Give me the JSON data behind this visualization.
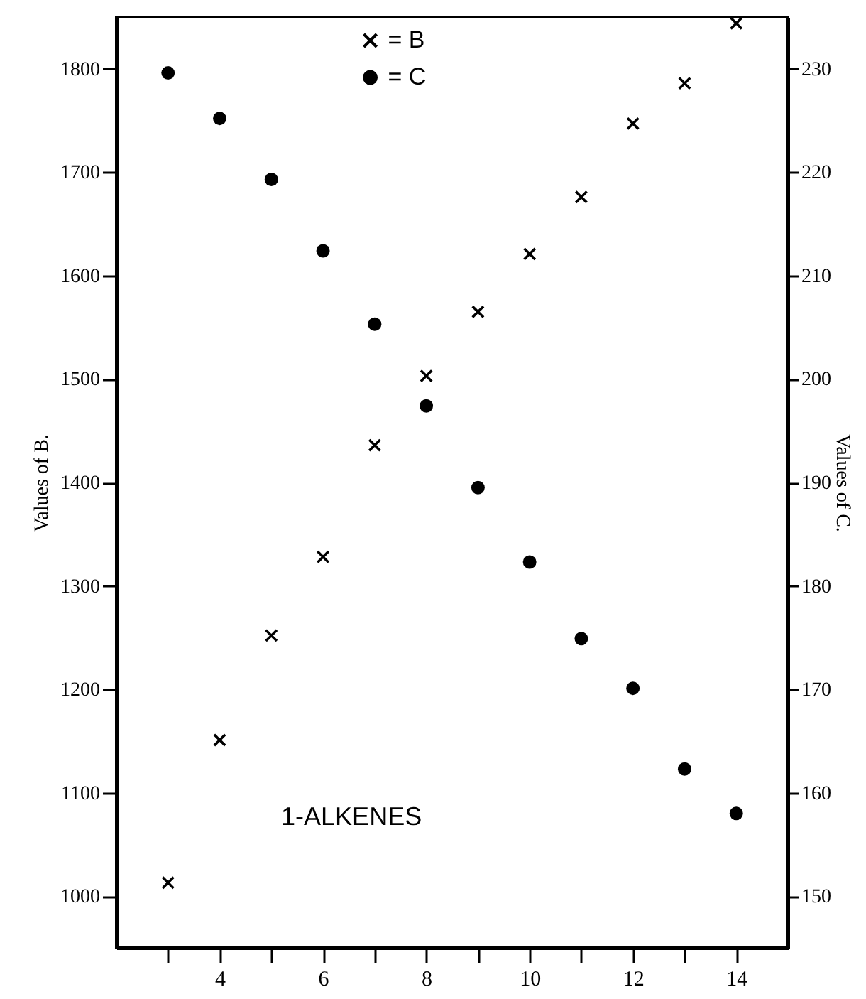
{
  "chart_data": {
    "type": "scatter",
    "x": [
      3,
      4,
      5,
      6,
      7,
      8,
      9,
      10,
      11,
      12,
      13,
      14
    ],
    "series": [
      {
        "name": "= B",
        "color": "#000000",
        "marker": "cross",
        "values": [
          1013,
          1151,
          1252,
          1328,
          1436,
          1503,
          1565,
          1621,
          1676,
          1747,
          1786,
          1844
        ]
      },
      {
        "name": "= C",
        "color": "#000000",
        "marker": "circle",
        "axis": "y2",
        "values": [
          229.6,
          225.2,
          219.3,
          212.4,
          205.3,
          197.4,
          189.5,
          182.3,
          174.9,
          170.1,
          162.3,
          158.0
        ]
      }
    ],
    "ylabel": "Values of B.",
    "y2label": "Values of C.",
    "annotations": [
      "1-ALKENES"
    ],
    "xlim": [
      2,
      15
    ],
    "xticks": [
      {
        "value": 3,
        "label": null
      },
      4,
      {
        "value": 5,
        "label": null
      },
      6,
      {
        "value": 7,
        "label": null
      },
      8,
      {
        "value": 9,
        "label": null
      },
      10,
      {
        "value": 11,
        "label": null
      },
      12,
      {
        "value": 13,
        "label": null
      },
      14
    ],
    "ylim": [
      950,
      1850
    ],
    "yticks": [
      1000,
      1100,
      1200,
      1300,
      1400,
      1500,
      1600,
      1700,
      1800
    ],
    "y2lim": [
      145,
      235
    ],
    "y2ticks": [
      150,
      160,
      170,
      180,
      190,
      200,
      210,
      220,
      230
    ],
    "legend": "top",
    "grid": false
  }
}
